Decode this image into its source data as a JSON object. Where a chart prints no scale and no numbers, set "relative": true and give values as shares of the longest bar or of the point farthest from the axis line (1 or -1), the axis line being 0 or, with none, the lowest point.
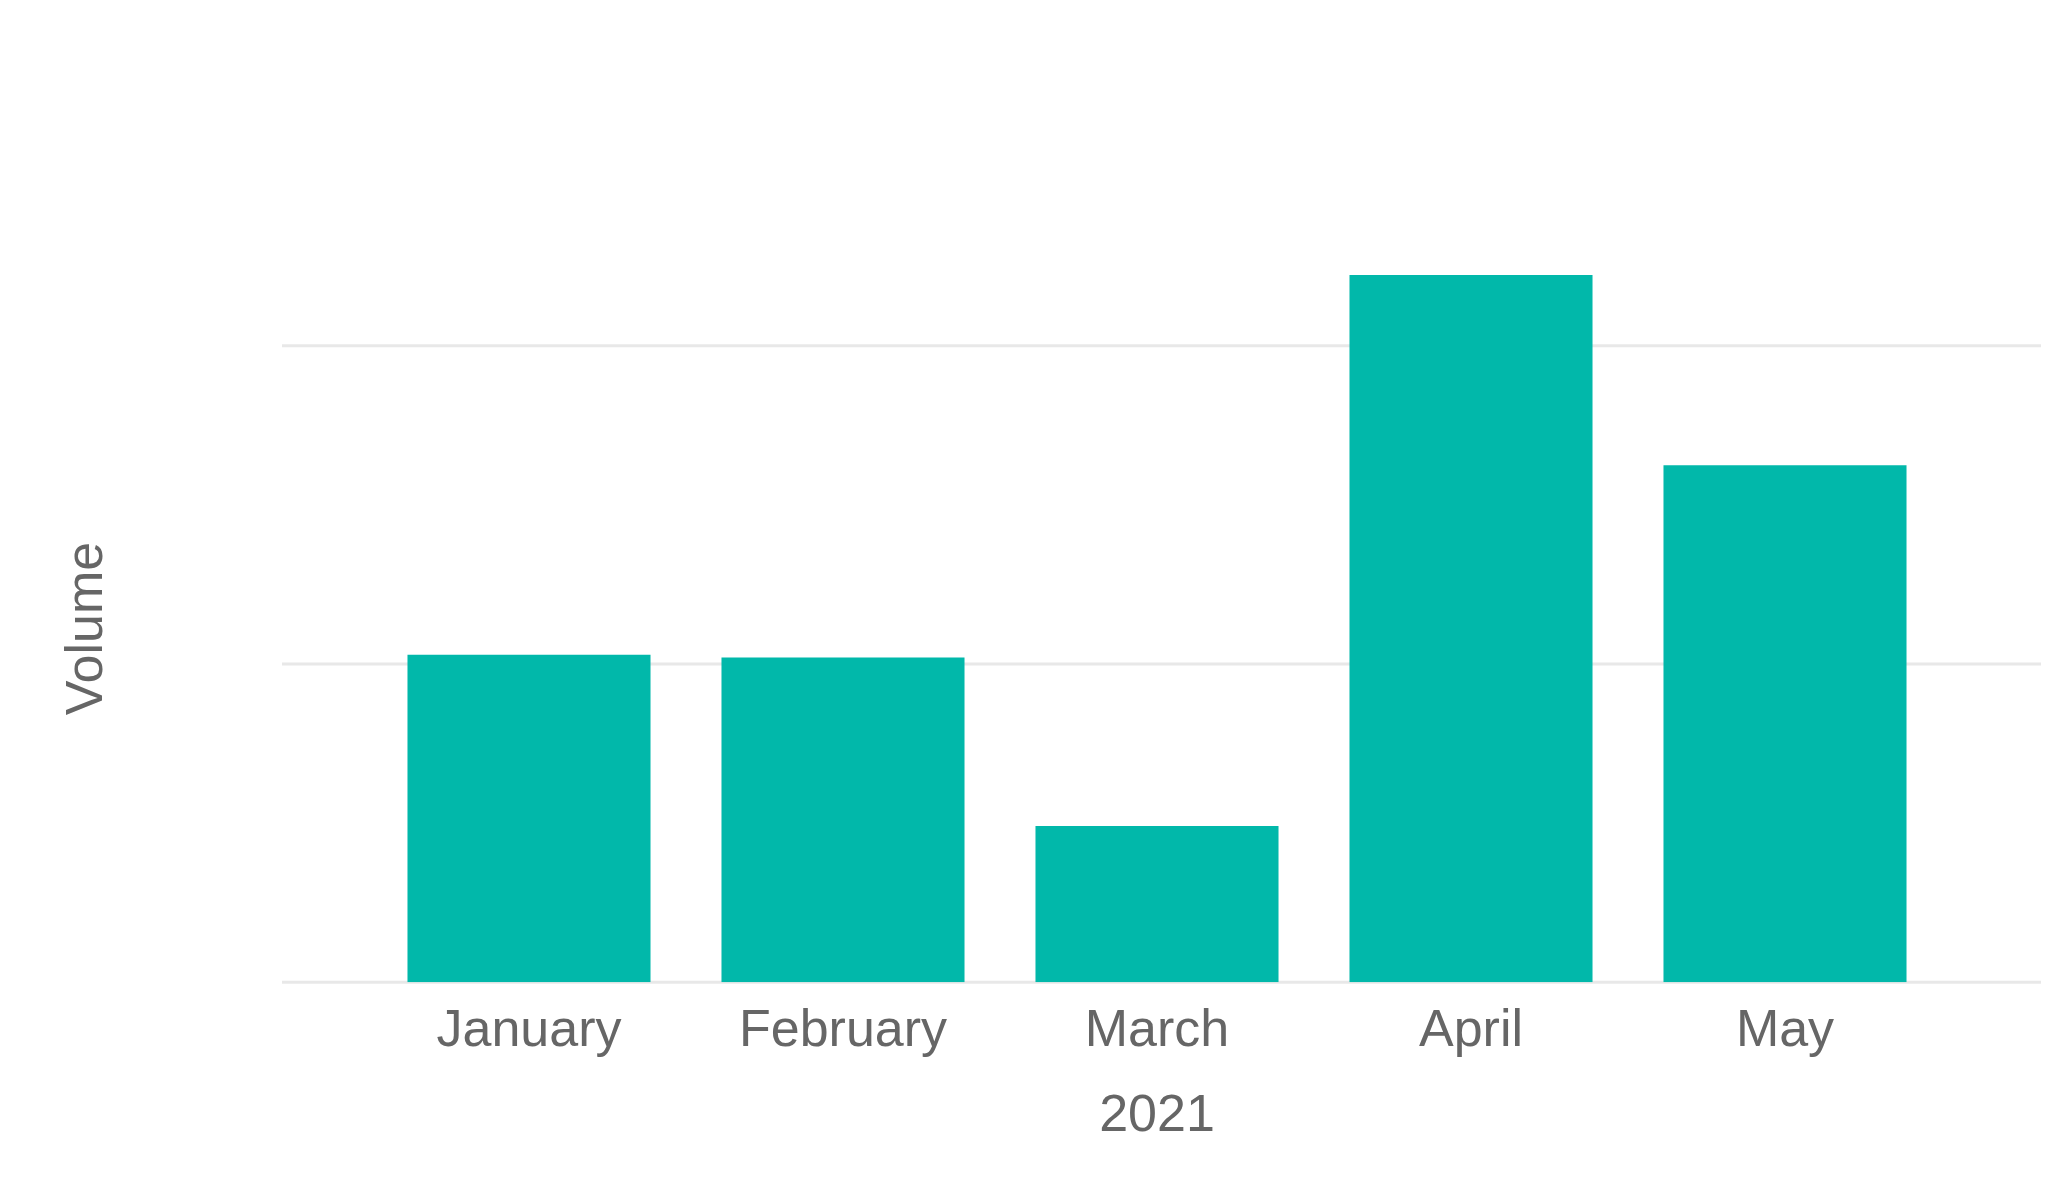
{
  "chart_data": {
    "type": "bar",
    "xlabel": "2021",
    "ylabel": "Volume",
    "categories": [
      "January",
      "February",
      "March",
      "April",
      "May"
    ],
    "values": [
      0.463,
      0.459,
      0.221,
      1,
      0.731
    ],
    "color": "#01b8aa",
    "relative": true,
    "ref_lines": [
      {
        "axis": "y",
        "value": 0.45,
        "color": "#e8e8e8"
      },
      {
        "axis": "y",
        "value": 0.9,
        "color": "#e8e8e8"
      }
    ]
  }
}
